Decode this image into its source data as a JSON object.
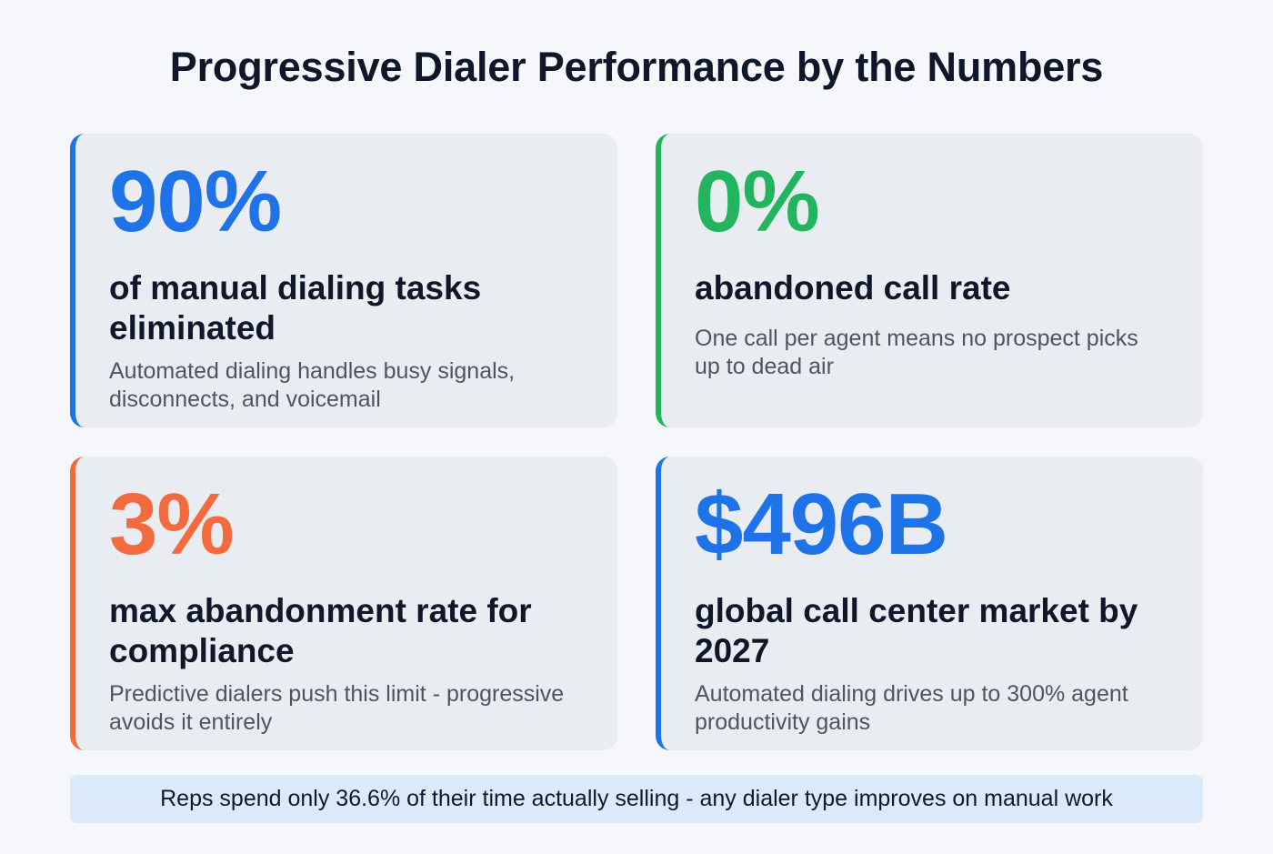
{
  "title": "Progressive Dialer Performance by the Numbers",
  "colors": {
    "blue": "#1e73e8",
    "green": "#22b45e",
    "orange": "#f26a3d",
    "card_bg": "#e9ecf1",
    "banner_bg": "#dbeafb",
    "heading": "#0f172a",
    "body_text": "#4b5563"
  },
  "cards": [
    {
      "stat": "90%",
      "accent": "#1e73e8",
      "headline": "of manual dialing tasks eliminated",
      "description": "Automated dialing handles busy signals, disconnects, and voicemail"
    },
    {
      "stat": "0%",
      "accent": "#22b45e",
      "headline": "abandoned call rate",
      "description": "One call per agent means no prospect picks up to dead air"
    },
    {
      "stat": "3%",
      "accent": "#f26a3d",
      "headline": "max abandonment rate for compliance",
      "description": "Predictive dialers push this limit - progressive avoids it entirely"
    },
    {
      "stat": "$496B",
      "accent": "#1e73e8",
      "headline": "global call center market by 2027",
      "description": "Automated dialing drives up to 300% agent productivity gains"
    }
  ],
  "footer": {
    "text": "Reps spend only 36.6% of their time actually selling - any dialer type improves on manual work"
  }
}
